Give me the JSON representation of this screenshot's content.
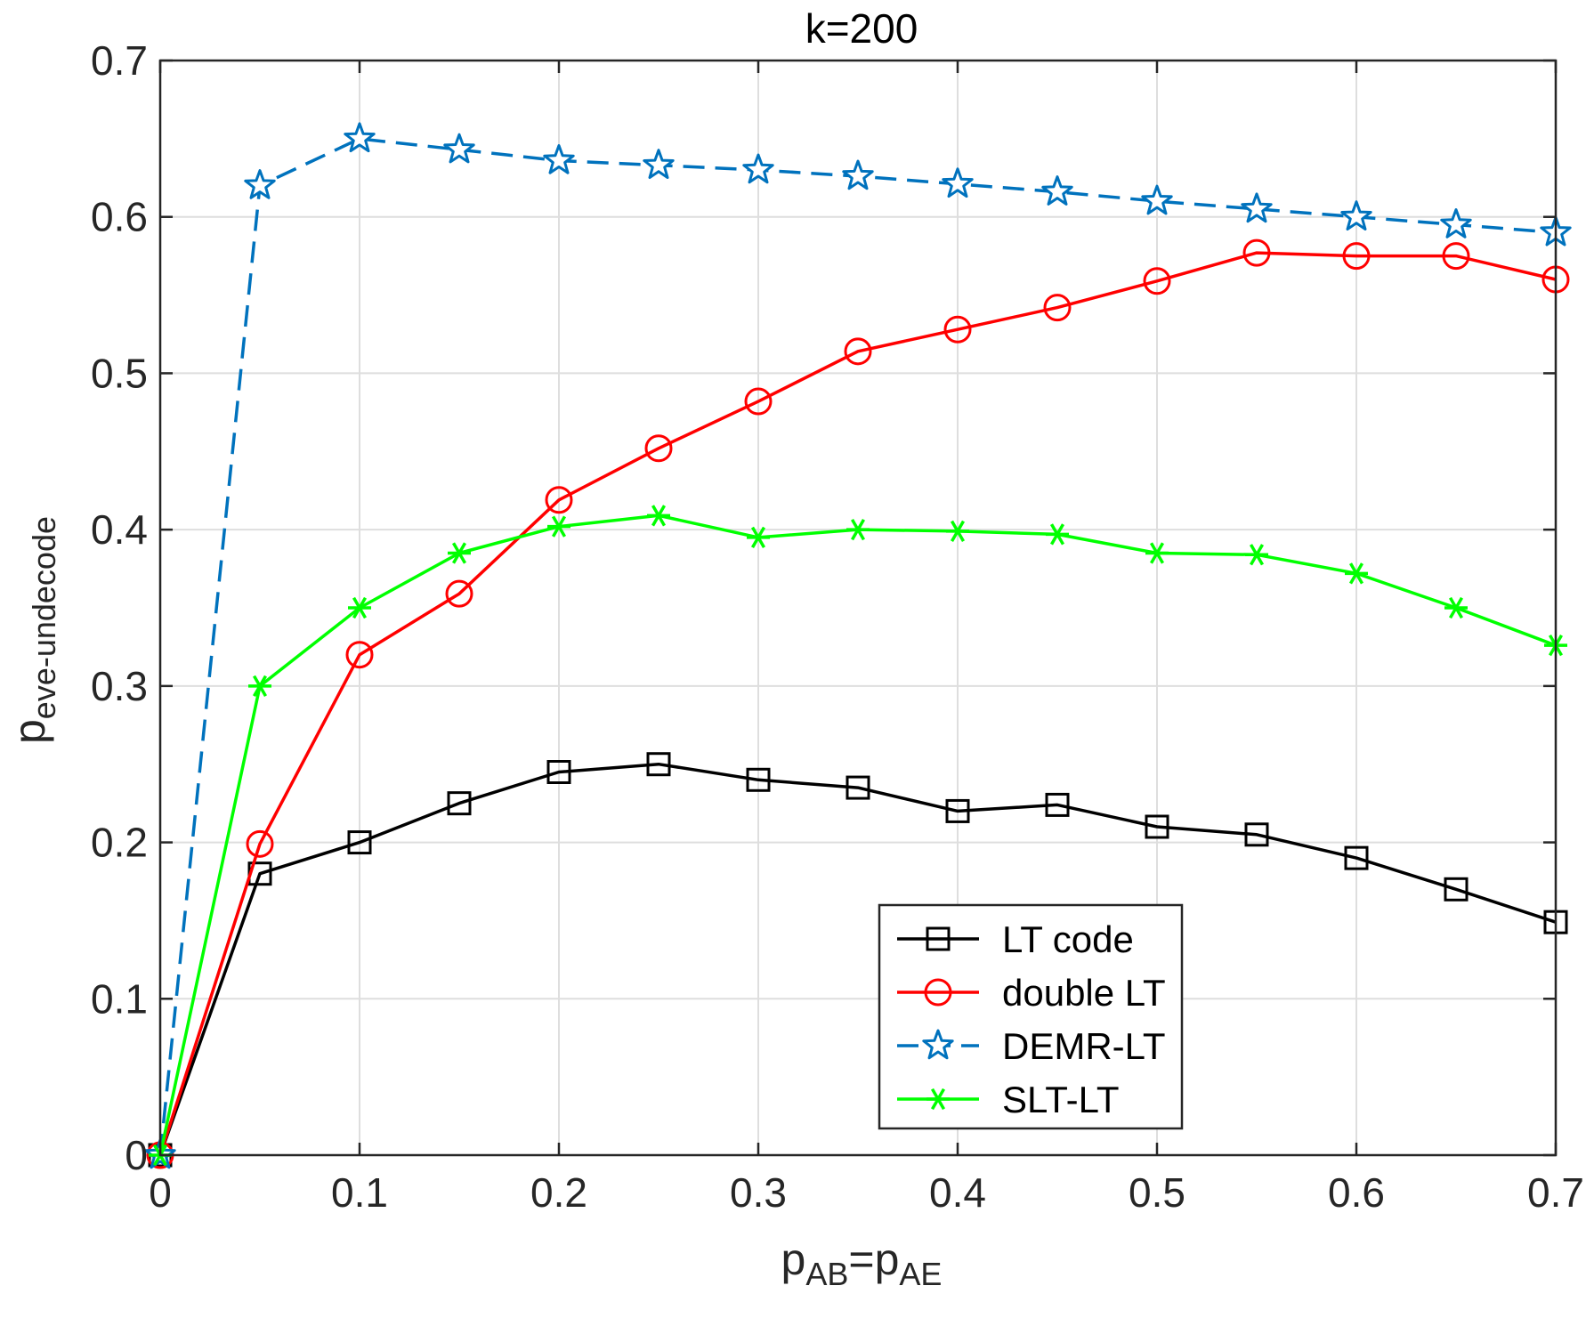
{
  "chart_data": {
    "type": "line",
    "title": "k=200",
    "xlabel": {
      "base": "p",
      "sub1": "AB",
      "eq": "=p",
      "sub2": "AE"
    },
    "ylabel": {
      "base": "p",
      "sub": "eve-undecode"
    },
    "xlim": [
      0,
      0.7
    ],
    "ylim": [
      0,
      0.7
    ],
    "xticks": [
      0,
      0.1,
      0.2,
      0.3,
      0.4,
      0.5,
      0.6,
      0.7
    ],
    "yticks": [
      0,
      0.1,
      0.2,
      0.3,
      0.4,
      0.5,
      0.6,
      0.7
    ],
    "xtick_labels": [
      "0",
      "0.1",
      "0.2",
      "0.3",
      "0.4",
      "0.5",
      "0.6",
      "0.7"
    ],
    "ytick_labels": [
      "0",
      "0.1",
      "0.2",
      "0.3",
      "0.4",
      "0.5",
      "0.6",
      "0.7"
    ],
    "grid": true,
    "legend_position": "bottom-right",
    "x": [
      0,
      0.05,
      0.1,
      0.15,
      0.2,
      0.25,
      0.3,
      0.35,
      0.4,
      0.45,
      0.5,
      0.55,
      0.6,
      0.65,
      0.7
    ],
    "series": [
      {
        "name": "LT code",
        "color": "#000000",
        "marker": "square",
        "dash": "solid",
        "values": [
          0,
          0.18,
          0.2,
          0.225,
          0.245,
          0.25,
          0.24,
          0.235,
          0.22,
          0.224,
          0.21,
          0.205,
          0.19,
          0.17,
          0.149
        ]
      },
      {
        "name": "double LT",
        "color": "#ff0000",
        "marker": "circle",
        "dash": "solid",
        "values": [
          0,
          0.199,
          0.32,
          0.359,
          0.419,
          0.452,
          0.482,
          0.514,
          0.528,
          0.542,
          0.559,
          0.577,
          0.575,
          0.575,
          0.56
        ]
      },
      {
        "name": "DEMR-LT",
        "color": "#0072bd",
        "marker": "star",
        "dash": "dashed",
        "values": [
          0,
          0.62,
          0.65,
          0.643,
          0.636,
          0.633,
          0.63,
          0.626,
          0.621,
          0.616,
          0.61,
          0.605,
          0.6,
          0.595,
          0.59
        ]
      },
      {
        "name": "SLT-LT",
        "color": "#00ff00",
        "marker": "asterisk",
        "dash": "solid",
        "values": [
          0,
          0.3,
          0.35,
          0.385,
          0.402,
          0.409,
          0.395,
          0.4,
          0.399,
          0.397,
          0.385,
          0.384,
          0.372,
          0.35,
          0.326
        ]
      }
    ]
  }
}
